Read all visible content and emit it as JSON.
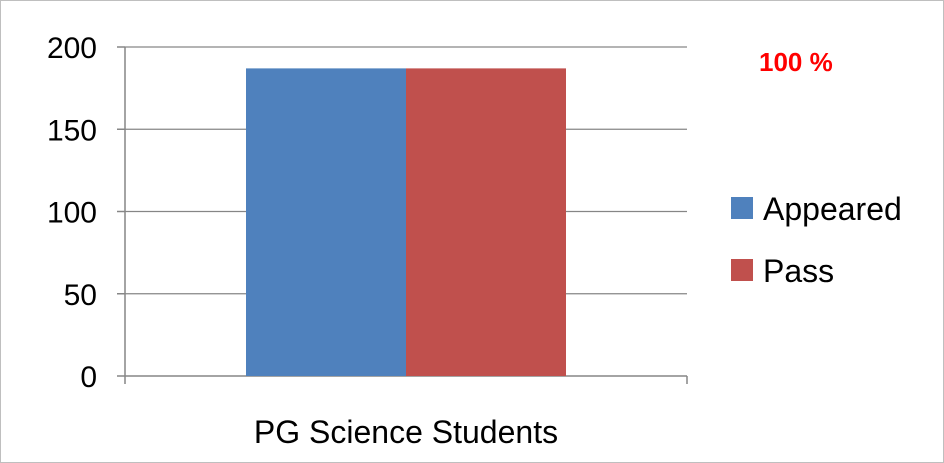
{
  "chart_data": {
    "type": "bar",
    "categories": [
      "PG Science Students"
    ],
    "series": [
      {
        "name": "Appeared",
        "values": [
          187
        ],
        "color": "#4f81bd"
      },
      {
        "name": "Pass",
        "values": [
          187
        ],
        "color": "#c0504d"
      }
    ],
    "ylim": [
      0,
      200
    ],
    "yticks": [
      "0",
      "50",
      "100",
      "150",
      "200"
    ],
    "ytick_values": [
      0,
      50,
      100,
      150,
      200
    ],
    "grid": true,
    "legend_position": "right",
    "annotation": {
      "text": "100 %",
      "color": "#ff0000"
    }
  }
}
